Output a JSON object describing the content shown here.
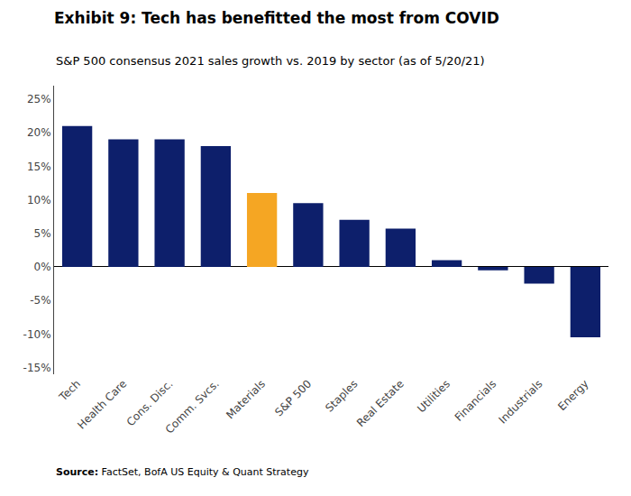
{
  "chart_data": {
    "type": "bar",
    "title": "Exhibit 9: Tech has benefitted the most from COVID",
    "subtitle": "S&P 500 consensus 2021 sales growth vs. 2019 by sector (as of 5/20/21)",
    "annotations": [
      "Source: FactSet, BofA US Equity & Quant Strategy"
    ],
    "categories": [
      "Tech",
      "Health Care",
      "Cons. Disc.",
      "Comm. Svcs.",
      "Materials",
      "S&P 500",
      "Staples",
      "Real Estate",
      "Utilities",
      "Financials",
      "Industrials",
      "Energy"
    ],
    "values": [
      21.0,
      19.0,
      19.0,
      18.0,
      11.0,
      9.5,
      7.0,
      5.7,
      1.0,
      -0.5,
      -2.5,
      -10.5
    ],
    "colors": [
      "#0d1f6b",
      "#0d1f6b",
      "#0d1f6b",
      "#0d1f6b",
      "#f5a623",
      "#0d1f6b",
      "#0d1f6b",
      "#0d1f6b",
      "#0d1f6b",
      "#0d1f6b",
      "#0d1f6b",
      "#0d1f6b"
    ],
    "ylim": [
      -16,
      27
    ],
    "yticks": [
      {
        "value": -15,
        "label": "-15%"
      },
      {
        "value": -10,
        "label": "-10%"
      },
      {
        "value": -5,
        "label": "-5%"
      },
      {
        "value": 0,
        "label": "0%"
      },
      {
        "value": 5,
        "label": "5%"
      },
      {
        "value": 10,
        "label": "10%"
      },
      {
        "value": 15,
        "label": "15%"
      },
      {
        "value": 20,
        "label": "20%"
      },
      {
        "value": 25,
        "label": "25%"
      }
    ],
    "grid": false
  }
}
